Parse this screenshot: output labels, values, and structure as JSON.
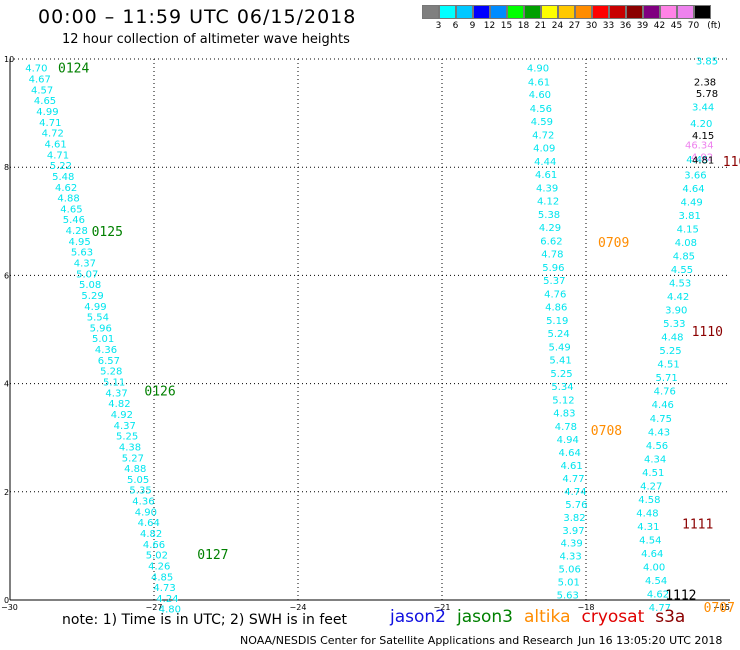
{
  "header": {
    "title": "00:00 – 11:59 UTC 06/15/2018",
    "subtitle": "12 hour collection of altimeter wave heights"
  },
  "legend": {
    "unit": "(ft)",
    "colors": [
      "#7f7f7f",
      "#00ffff",
      "#00c8ff",
      "#0000ff",
      "#008cff",
      "#00ff00",
      "#00a000",
      "#ffff00",
      "#ffc800",
      "#ff8c00",
      "#ff0000",
      "#c80000",
      "#8b0000",
      "#800080",
      "#ff82e6",
      "#ee82ee",
      "#000000"
    ],
    "labels": [
      "3",
      "6",
      "9",
      "12",
      "15",
      "18",
      "21",
      "24",
      "27",
      "30",
      "33",
      "36",
      "39",
      "42",
      "45",
      "70"
    ]
  },
  "footer": {
    "note": "note: 1) Time is in UTC; 2) SWH is in feet",
    "satellites": [
      {
        "name": "jason2",
        "color": "#1010e0"
      },
      {
        "name": "jason3",
        "color": "#008000"
      },
      {
        "name": "altika",
        "color": "#ff8c00"
      },
      {
        "name": "cryosat",
        "color": "#e00000"
      },
      {
        "name": "s3a",
        "color": "#8b0000"
      }
    ],
    "credit": "NOAA/NESDIS Center for Satellite Applications and Research",
    "timestamp": "Jun 16 13:05:20 UTC 2018"
  },
  "chart_data": {
    "type": "scatter",
    "xlim": [
      -30,
      -15
    ],
    "ylim": [
      0,
      10
    ],
    "x_ticks": [
      -30,
      -27,
      -24,
      -21,
      -18,
      -15
    ],
    "y_ticks": [
      0,
      2,
      4,
      6,
      8,
      10
    ],
    "grid": true,
    "series": [
      {
        "name": "jason3",
        "color": "#00e5ee",
        "points": [
          [
            -29.45,
            9.82,
            "4.70"
          ],
          [
            -29.38,
            9.62,
            "4.67"
          ],
          [
            -29.33,
            9.42,
            "4.57"
          ],
          [
            -29.27,
            9.22,
            "4.65"
          ],
          [
            -29.22,
            9.02,
            "4.99"
          ],
          [
            -29.16,
            8.82,
            "4.71"
          ],
          [
            -29.11,
            8.62,
            "4.72"
          ],
          [
            -29.05,
            8.42,
            "4.61"
          ],
          [
            -29.0,
            8.22,
            "4.71"
          ],
          [
            -28.94,
            8.02,
            "5.22"
          ],
          [
            -28.89,
            7.82,
            "5.48"
          ],
          [
            -28.83,
            7.62,
            "4.62"
          ],
          [
            -28.78,
            7.42,
            "4.88"
          ],
          [
            -28.72,
            7.22,
            "4.65"
          ],
          [
            -28.67,
            7.02,
            "5.46"
          ],
          [
            -28.61,
            6.82,
            "4.28"
          ],
          [
            -28.55,
            6.62,
            "4.95"
          ],
          [
            -28.5,
            6.42,
            "5.63"
          ],
          [
            -28.44,
            6.22,
            "4.37"
          ],
          [
            -28.39,
            6.02,
            "5.07"
          ],
          [
            -28.33,
            5.82,
            "5.08"
          ],
          [
            -28.28,
            5.62,
            "5.29"
          ],
          [
            -28.22,
            5.42,
            "4.99"
          ],
          [
            -28.17,
            5.22,
            "5.54"
          ],
          [
            -28.11,
            5.02,
            "5.96"
          ],
          [
            -28.06,
            4.82,
            "5.01"
          ],
          [
            -28.0,
            4.62,
            "4.36"
          ],
          [
            -27.94,
            4.42,
            "6.57"
          ],
          [
            -27.89,
            4.22,
            "5.28"
          ],
          [
            -27.83,
            4.02,
            "5.11"
          ],
          [
            -27.78,
            3.82,
            "4.37"
          ],
          [
            -27.72,
            3.62,
            "4.82"
          ],
          [
            -27.67,
            3.42,
            "4.92"
          ],
          [
            -27.61,
            3.22,
            "4.37"
          ],
          [
            -27.56,
            3.02,
            "5.25"
          ],
          [
            -27.5,
            2.82,
            "4.38"
          ],
          [
            -27.44,
            2.62,
            "5.27"
          ],
          [
            -27.39,
            2.42,
            "4.88"
          ],
          [
            -27.33,
            2.22,
            "5.05"
          ],
          [
            -27.28,
            2.02,
            "5.35"
          ],
          [
            -27.22,
            1.82,
            "4.36"
          ],
          [
            -27.17,
            1.62,
            "4.90"
          ],
          [
            -27.11,
            1.42,
            "4.64"
          ],
          [
            -27.06,
            1.22,
            "4.82"
          ],
          [
            -27.0,
            1.02,
            "4.66"
          ],
          [
            -26.94,
            0.82,
            "5.02"
          ],
          [
            -26.89,
            0.62,
            "4.26"
          ],
          [
            -26.83,
            0.42,
            "4.85"
          ],
          [
            -26.78,
            0.22,
            "4.73"
          ],
          [
            -26.72,
            0.02,
            "4.24"
          ],
          [
            -26.67,
            -0.18,
            "4.80"
          ]
        ]
      },
      {
        "name": "jason3",
        "color": "#00e5ee",
        "points": [
          [
            -19.0,
            9.82,
            "4.90"
          ],
          [
            -18.98,
            9.57,
            "4.61"
          ],
          [
            -18.96,
            9.33,
            "4.60"
          ],
          [
            -18.94,
            9.08,
            "4.56"
          ],
          [
            -18.92,
            8.84,
            "4.59"
          ],
          [
            -18.89,
            8.59,
            "4.72"
          ],
          [
            -18.87,
            8.35,
            "4.09"
          ],
          [
            -18.85,
            8.1,
            "4.44"
          ],
          [
            -18.83,
            7.86,
            "4.61"
          ],
          [
            -18.81,
            7.61,
            "4.39"
          ],
          [
            -18.79,
            7.37,
            "4.12"
          ],
          [
            -18.77,
            7.12,
            "5.38"
          ],
          [
            -18.75,
            6.88,
            "4.29"
          ],
          [
            -18.72,
            6.63,
            "6.62"
          ],
          [
            -18.7,
            6.39,
            "4.78"
          ],
          [
            -18.68,
            6.14,
            "5.96"
          ],
          [
            -18.66,
            5.9,
            "5.37"
          ],
          [
            -18.64,
            5.65,
            "4.76"
          ],
          [
            -18.62,
            5.41,
            "4.86"
          ],
          [
            -18.6,
            5.16,
            "5.19"
          ],
          [
            -18.57,
            4.92,
            "5.24"
          ],
          [
            -18.55,
            4.67,
            "5.49"
          ],
          [
            -18.53,
            4.43,
            "5.41"
          ],
          [
            -18.51,
            4.18,
            "5.25"
          ],
          [
            -18.49,
            3.94,
            "5.34"
          ],
          [
            -18.47,
            3.69,
            "5.12"
          ],
          [
            -18.45,
            3.45,
            "4.83"
          ],
          [
            -18.42,
            3.2,
            "4.78"
          ],
          [
            -18.38,
            2.96,
            "4.94"
          ],
          [
            -18.34,
            2.72,
            "4.64"
          ],
          [
            -18.3,
            2.48,
            "4.61"
          ],
          [
            -18.26,
            2.24,
            "4.77"
          ],
          [
            -18.22,
            2.0,
            "4.74"
          ],
          [
            -18.2,
            1.76,
            "5.76"
          ],
          [
            -18.24,
            1.52,
            "3.82"
          ],
          [
            -18.26,
            1.28,
            "3.97"
          ],
          [
            -18.3,
            1.04,
            "4.39"
          ],
          [
            -18.32,
            0.8,
            "4.33"
          ],
          [
            -18.34,
            0.56,
            "5.06"
          ],
          [
            -18.36,
            0.32,
            "5.01"
          ],
          [
            -18.38,
            0.08,
            "5.63"
          ]
        ]
      },
      {
        "name": "jason3",
        "color": "#00e5ee",
        "points": [
          [
            -15.48,
            9.95,
            "3.85"
          ],
          [
            -15.56,
            9.1,
            "3.44"
          ],
          [
            -15.6,
            8.8,
            "4.20"
          ],
          [
            -15.68,
            8.13,
            "4.45"
          ],
          [
            -15.72,
            7.85,
            "3.66"
          ],
          [
            -15.76,
            7.6,
            "4.64"
          ],
          [
            -15.8,
            7.35,
            "4.49"
          ],
          [
            -15.84,
            7.1,
            "3.81"
          ],
          [
            -15.88,
            6.85,
            "4.15"
          ],
          [
            -15.92,
            6.6,
            "4.08"
          ],
          [
            -15.96,
            6.35,
            "4.85"
          ],
          [
            -16.0,
            6.1,
            "4.55"
          ],
          [
            -16.04,
            5.85,
            "4.53"
          ],
          [
            -16.08,
            5.6,
            "4.42"
          ],
          [
            -16.12,
            5.35,
            "3.90"
          ],
          [
            -16.16,
            5.1,
            "5.33"
          ],
          [
            -16.2,
            4.85,
            "4.48"
          ],
          [
            -16.24,
            4.6,
            "5.25"
          ],
          [
            -16.28,
            4.35,
            "4.51"
          ],
          [
            -16.32,
            4.1,
            "5.71"
          ],
          [
            -16.36,
            3.85,
            "4.76"
          ],
          [
            -16.4,
            3.6,
            "4.46"
          ],
          [
            -16.44,
            3.35,
            "4.75"
          ],
          [
            -16.48,
            3.1,
            "4.43"
          ],
          [
            -16.52,
            2.85,
            "4.56"
          ],
          [
            -16.56,
            2.6,
            "4.34"
          ],
          [
            -16.6,
            2.35,
            "4.51"
          ],
          [
            -16.64,
            2.1,
            "4.27"
          ],
          [
            -16.68,
            1.85,
            "4.58"
          ],
          [
            -16.72,
            1.6,
            "4.48"
          ],
          [
            -16.7,
            1.35,
            "4.31"
          ],
          [
            -16.66,
            1.1,
            "4.54"
          ],
          [
            -16.62,
            0.85,
            "4.64"
          ],
          [
            -16.58,
            0.6,
            "4.00"
          ],
          [
            -16.54,
            0.35,
            "4.54"
          ],
          [
            -16.5,
            0.1,
            "4.62"
          ],
          [
            -16.46,
            -0.15,
            "4.77"
          ]
        ]
      },
      {
        "name": "cryosat",
        "color": "#ee82ee",
        "points": [
          [
            -15.64,
            8.4,
            "46.34"
          ],
          [
            -15.58,
            8.18,
            "4.92"
          ]
        ]
      },
      {
        "name": "s3a",
        "color": "#000000",
        "points": [
          [
            -15.52,
            9.57,
            "2.38"
          ],
          [
            -15.48,
            9.35,
            "5.78"
          ],
          [
            -15.56,
            8.58,
            "4.15"
          ],
          [
            -15.56,
            8.12,
            "4.81"
          ]
        ]
      }
    ],
    "annotations": [
      {
        "x": -29.0,
        "y": 9.82,
        "text": "0124",
        "color": "#008000"
      },
      {
        "x": -28.3,
        "y": 6.8,
        "text": "0125",
        "color": "#008000"
      },
      {
        "x": -27.2,
        "y": 3.85,
        "text": "0126",
        "color": "#008000"
      },
      {
        "x": -26.1,
        "y": 0.83,
        "text": "0127",
        "color": "#008000"
      },
      {
        "x": -17.75,
        "y": 6.6,
        "text": "0709",
        "color": "#ff8c00"
      },
      {
        "x": -17.9,
        "y": 3.12,
        "text": "0708",
        "color": "#ff8c00"
      },
      {
        "x": -15.55,
        "y": -0.15,
        "text": "0707",
        "color": "#ff8c00"
      },
      {
        "x": -15.15,
        "y": 8.1,
        "text": "110",
        "color": "#8b0000"
      },
      {
        "x": -15.8,
        "y": 4.95,
        "text": "1110",
        "color": "#8b0000"
      },
      {
        "x": -16.0,
        "y": 1.4,
        "text": "1111",
        "color": "#8b0000"
      },
      {
        "x": -16.35,
        "y": 0.08,
        "text": "1112",
        "color": "#000000"
      }
    ]
  }
}
